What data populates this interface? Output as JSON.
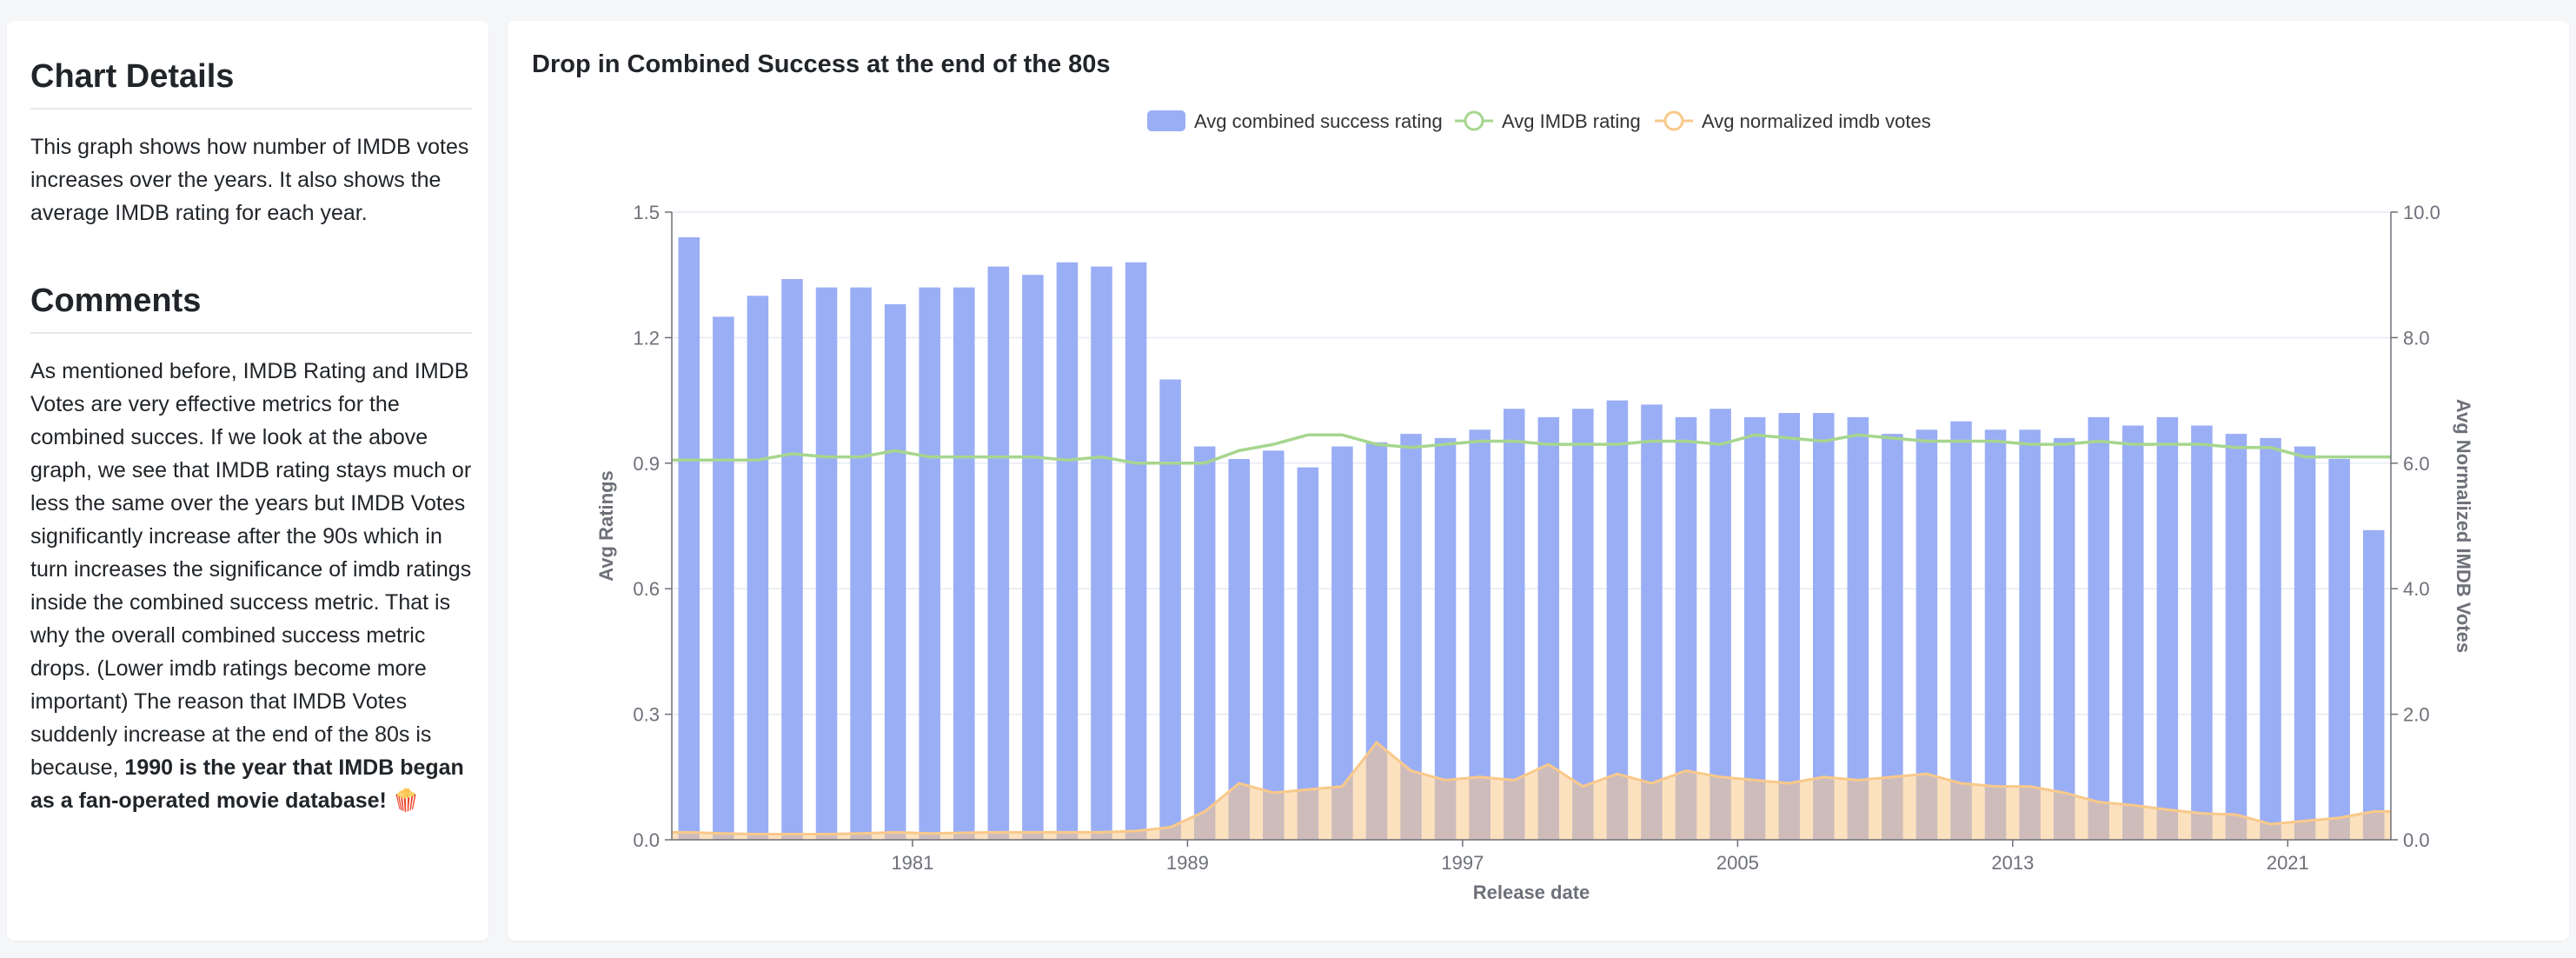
{
  "sidebar": {
    "details_heading": "Chart Details",
    "details_text": "This graph shows how number of IMDB votes increases over the years. It also shows the average IMDB rating for each year.",
    "comments_heading": "Comments",
    "comments_text": "As mentioned before, IMDB Rating and IMDB Votes are very effective metrics for the combined succes. If we look at the above graph, we see that IMDB rating stays much or less the same over the years but IMDB Votes significantly increase after the 90s which in turn increases the significance of imdb ratings inside the combined success metric. That is why the overall combined success metric drops. (Lower imdb ratings become more important) The reason that IMDB Votes suddenly increase at the end of the 80s is because, ",
    "comments_bold": "1990 is the year that IMDB began as a fan-operated movie database! 🍿"
  },
  "chart_data": {
    "type": "bar",
    "title": "Drop in Combined Success at the end of the 80s",
    "xlabel": "Release date",
    "ylabel": "Avg Ratings",
    "ylabel_right": "Avg Normalized IMDB Votes",
    "ylim": [
      0,
      1.5
    ],
    "ylim_right": [
      0,
      10
    ],
    "yticks": [
      "0.0",
      "0.3",
      "0.6",
      "0.9",
      "1.2",
      "1.5"
    ],
    "yticks_right": [
      "0.0",
      "2.0",
      "4.0",
      "6.0",
      "8.0",
      "10.0"
    ],
    "xticks": [
      "1981",
      "1989",
      "1997",
      "2005",
      "2013",
      "2021"
    ],
    "grid": true,
    "legend_position": "top-center",
    "colors": {
      "bar": "#9aaef5",
      "line": "#a6d68e",
      "area": "#f9c98a"
    },
    "categories": [
      "1974",
      "1975",
      "1976",
      "1977",
      "1978",
      "1979",
      "1980",
      "1981",
      "1982",
      "1983",
      "1984",
      "1985",
      "1986",
      "1987",
      "1988",
      "1989",
      "1990",
      "1991",
      "1992",
      "1993",
      "1994",
      "1995",
      "1996",
      "1997",
      "1998",
      "1999",
      "2000",
      "2001",
      "2002",
      "2003",
      "2004",
      "2005",
      "2006",
      "2007",
      "2008",
      "2009",
      "2010",
      "2011",
      "2012",
      "2013",
      "2014",
      "2015",
      "2016",
      "2017",
      "2018",
      "2019",
      "2020",
      "2021",
      "2022",
      "2023"
    ],
    "series": [
      {
        "name": "Avg combined success rating",
        "type": "bar",
        "axis": "left",
        "values": [
          1.44,
          1.25,
          1.3,
          1.34,
          1.32,
          1.32,
          1.28,
          1.32,
          1.32,
          1.37,
          1.35,
          1.38,
          1.37,
          1.38,
          1.1,
          0.94,
          0.91,
          0.93,
          0.89,
          0.94,
          0.95,
          0.97,
          0.96,
          0.98,
          1.03,
          1.01,
          1.03,
          1.05,
          1.04,
          1.01,
          1.03,
          1.01,
          1.02,
          1.02,
          1.01,
          0.97,
          0.98,
          1.0,
          0.98,
          0.98,
          0.96,
          1.01,
          0.99,
          1.01,
          0.99,
          0.97,
          0.96,
          0.94,
          0.91,
          0.74
        ]
      },
      {
        "name": "Avg IMDB rating",
        "type": "line",
        "axis": "right",
        "values": [
          6.05,
          6.05,
          6.05,
          6.15,
          6.1,
          6.1,
          6.2,
          6.1,
          6.1,
          6.1,
          6.1,
          6.05,
          6.1,
          6.0,
          6.0,
          6.0,
          6.2,
          6.3,
          6.45,
          6.45,
          6.3,
          6.25,
          6.3,
          6.35,
          6.35,
          6.3,
          6.3,
          6.3,
          6.35,
          6.35,
          6.3,
          6.45,
          6.4,
          6.35,
          6.45,
          6.4,
          6.35,
          6.35,
          6.35,
          6.3,
          6.3,
          6.35,
          6.3,
          6.3,
          6.3,
          6.25,
          6.25,
          6.1,
          6.1,
          6.1
        ]
      },
      {
        "name": "Avg normalized imdb votes",
        "type": "area",
        "axis": "right",
        "values": [
          0.12,
          0.1,
          0.09,
          0.09,
          0.09,
          0.1,
          0.12,
          0.1,
          0.11,
          0.12,
          0.12,
          0.12,
          0.12,
          0.14,
          0.2,
          0.45,
          0.9,
          0.75,
          0.8,
          0.85,
          1.55,
          1.1,
          0.95,
          1.0,
          0.95,
          1.2,
          0.85,
          1.05,
          0.9,
          1.1,
          1.0,
          0.95,
          0.9,
          1.0,
          0.95,
          1.0,
          1.05,
          0.9,
          0.85,
          0.85,
          0.75,
          0.6,
          0.55,
          0.48,
          0.42,
          0.4,
          0.25,
          0.3,
          0.35,
          0.45
        ]
      }
    ]
  }
}
